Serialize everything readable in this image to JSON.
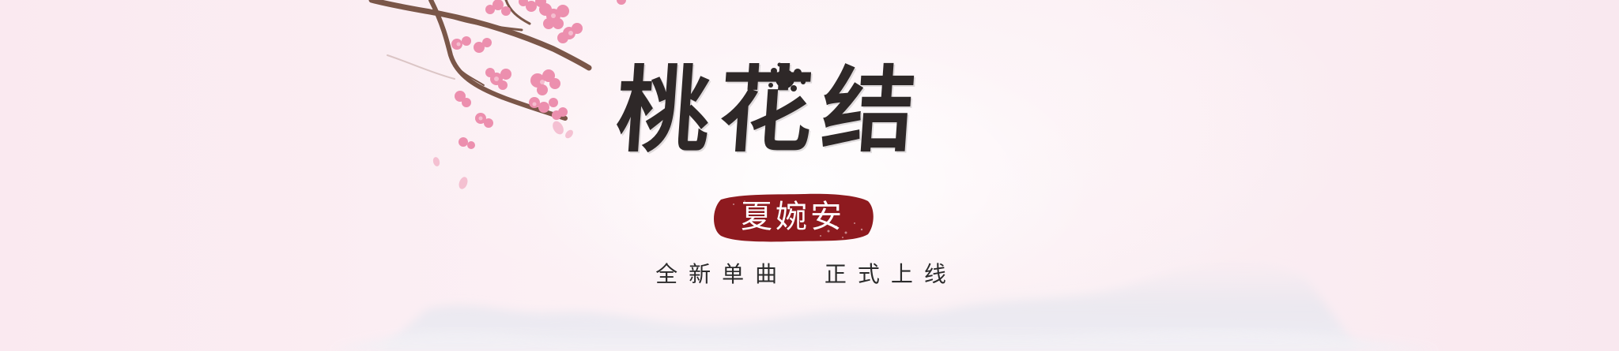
{
  "banner": {
    "title": "桃花结",
    "artist": "夏婉安",
    "tagline": "全新单曲  正式上线"
  },
  "colors": {
    "background": "#fbeef3",
    "title_ink": "#2e2828",
    "seal_red": "#8e1a1f",
    "blossom_pink": "#ec8fae",
    "branch_brown": "#7a5648"
  }
}
